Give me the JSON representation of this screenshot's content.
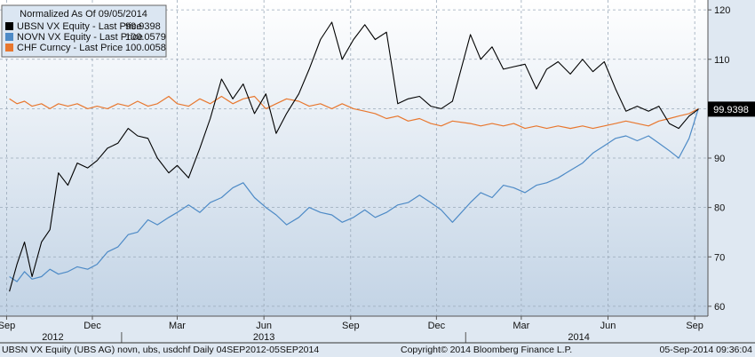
{
  "chart_data": {
    "type": "line",
    "legend": {
      "title": "Normalized As Of 09/05/2014",
      "placement": "top-left"
    },
    "series": [
      {
        "name": "UBSN VX Equity - Last Price",
        "last_value_label": "99.9398",
        "color": "#000000",
        "points": [
          [
            "2012-09-04",
            63.0
          ],
          [
            "2012-09-12",
            68.5
          ],
          [
            "2012-09-20",
            73.0
          ],
          [
            "2012-09-28",
            66.0
          ],
          [
            "2012-10-08",
            73.0
          ],
          [
            "2012-10-17",
            75.5
          ],
          [
            "2012-10-26",
            87.0
          ],
          [
            "2012-11-05",
            84.5
          ],
          [
            "2012-11-15",
            89.0
          ],
          [
            "2012-11-26",
            88.0
          ],
          [
            "2012-12-06",
            89.5
          ],
          [
            "2012-12-17",
            92.0
          ],
          [
            "2012-12-28",
            93.0
          ],
          [
            "2013-01-08",
            96.0
          ],
          [
            "2013-01-18",
            94.5
          ],
          [
            "2013-01-29",
            94.0
          ],
          [
            "2013-02-08",
            90.0
          ],
          [
            "2013-02-20",
            87.0
          ],
          [
            "2013-03-01",
            88.5
          ],
          [
            "2013-03-13",
            86.0
          ],
          [
            "2013-03-25",
            92.0
          ],
          [
            "2013-04-05",
            98.0
          ],
          [
            "2013-04-17",
            106.0
          ],
          [
            "2013-04-29",
            102.0
          ],
          [
            "2013-05-10",
            105.0
          ],
          [
            "2013-05-22",
            99.0
          ],
          [
            "2013-06-03",
            103.0
          ],
          [
            "2013-06-14",
            95.0
          ],
          [
            "2013-06-25",
            99.0
          ],
          [
            "2013-07-08",
            103.0
          ],
          [
            "2013-07-19",
            108.0
          ],
          [
            "2013-07-31",
            114.0
          ],
          [
            "2013-08-12",
            117.5
          ],
          [
            "2013-08-23",
            110.0
          ],
          [
            "2013-09-04",
            114.0
          ],
          [
            "2013-09-16",
            117.0
          ],
          [
            "2013-09-27",
            114.0
          ],
          [
            "2013-10-09",
            115.5
          ],
          [
            "2013-10-21",
            101.0
          ],
          [
            "2013-11-01",
            102.0
          ],
          [
            "2013-11-13",
            102.5
          ],
          [
            "2013-11-25",
            100.5
          ],
          [
            "2013-12-06",
            100.0
          ],
          [
            "2013-12-18",
            101.5
          ],
          [
            "2014-01-06",
            115.0
          ],
          [
            "2014-01-17",
            110.0
          ],
          [
            "2014-01-29",
            112.5
          ],
          [
            "2014-02-10",
            108.0
          ],
          [
            "2014-02-21",
            108.5
          ],
          [
            "2014-03-05",
            109.0
          ],
          [
            "2014-03-17",
            104.0
          ],
          [
            "2014-03-28",
            108.0
          ],
          [
            "2014-04-09",
            109.5
          ],
          [
            "2014-04-22",
            107.0
          ],
          [
            "2014-05-05",
            110.0
          ],
          [
            "2014-05-16",
            107.5
          ],
          [
            "2014-05-28",
            109.5
          ],
          [
            "2014-06-09",
            104.0
          ],
          [
            "2014-06-20",
            99.5
          ],
          [
            "2014-07-02",
            100.5
          ],
          [
            "2014-07-14",
            99.5
          ],
          [
            "2014-07-25",
            100.5
          ],
          [
            "2014-08-05",
            97.0
          ],
          [
            "2014-08-15",
            96.0
          ],
          [
            "2014-08-26",
            98.5
          ],
          [
            "2014-09-05",
            99.9
          ]
        ]
      },
      {
        "name": "NOVN VX Equity - Last Price",
        "last_value_label": "100.0579",
        "color": "#4d8ac6",
        "points": [
          [
            "2012-09-04",
            66.0
          ],
          [
            "2012-09-12",
            65.0
          ],
          [
            "2012-09-20",
            67.0
          ],
          [
            "2012-09-28",
            65.5
          ],
          [
            "2012-10-08",
            66.0
          ],
          [
            "2012-10-17",
            67.5
          ],
          [
            "2012-10-26",
            66.5
          ],
          [
            "2012-11-05",
            67.0
          ],
          [
            "2012-11-15",
            68.0
          ],
          [
            "2012-11-26",
            67.5
          ],
          [
            "2012-12-06",
            68.5
          ],
          [
            "2012-12-17",
            71.0
          ],
          [
            "2012-12-28",
            72.0
          ],
          [
            "2013-01-08",
            74.5
          ],
          [
            "2013-01-18",
            75.0
          ],
          [
            "2013-01-29",
            77.5
          ],
          [
            "2013-02-08",
            76.5
          ],
          [
            "2013-02-20",
            78.0
          ],
          [
            "2013-03-01",
            79.0
          ],
          [
            "2013-03-13",
            80.5
          ],
          [
            "2013-03-25",
            79.0
          ],
          [
            "2013-04-05",
            81.0
          ],
          [
            "2013-04-17",
            82.0
          ],
          [
            "2013-04-29",
            84.0
          ],
          [
            "2013-05-10",
            85.0
          ],
          [
            "2013-05-22",
            82.0
          ],
          [
            "2013-06-03",
            80.0
          ],
          [
            "2013-06-14",
            78.5
          ],
          [
            "2013-06-25",
            76.5
          ],
          [
            "2013-07-08",
            78.0
          ],
          [
            "2013-07-19",
            80.0
          ],
          [
            "2013-07-31",
            79.0
          ],
          [
            "2013-08-12",
            78.5
          ],
          [
            "2013-08-23",
            77.0
          ],
          [
            "2013-09-04",
            78.0
          ],
          [
            "2013-09-16",
            79.5
          ],
          [
            "2013-09-27",
            78.0
          ],
          [
            "2013-10-09",
            79.0
          ],
          [
            "2013-10-21",
            80.5
          ],
          [
            "2013-11-01",
            81.0
          ],
          [
            "2013-11-13",
            82.5
          ],
          [
            "2013-11-25",
            81.0
          ],
          [
            "2013-12-06",
            79.5
          ],
          [
            "2013-12-18",
            77.0
          ],
          [
            "2014-01-06",
            81.0
          ],
          [
            "2014-01-17",
            83.0
          ],
          [
            "2014-01-29",
            82.0
          ],
          [
            "2014-02-10",
            84.5
          ],
          [
            "2014-02-21",
            84.0
          ],
          [
            "2014-03-05",
            83.0
          ],
          [
            "2014-03-17",
            84.5
          ],
          [
            "2014-03-28",
            85.0
          ],
          [
            "2014-04-09",
            86.0
          ],
          [
            "2014-04-22",
            87.5
          ],
          [
            "2014-05-05",
            89.0
          ],
          [
            "2014-05-16",
            91.0
          ],
          [
            "2014-05-28",
            92.5
          ],
          [
            "2014-06-09",
            94.0
          ],
          [
            "2014-06-20",
            94.5
          ],
          [
            "2014-07-02",
            93.5
          ],
          [
            "2014-07-14",
            94.5
          ],
          [
            "2014-07-25",
            93.0
          ],
          [
            "2014-08-05",
            91.5
          ],
          [
            "2014-08-15",
            90.0
          ],
          [
            "2014-08-26",
            94.0
          ],
          [
            "2014-09-05",
            100.1
          ]
        ]
      },
      {
        "name": "CHF Curncy - Last Price",
        "last_value_label": "100.0058",
        "color": "#e8772e",
        "points": [
          [
            "2012-09-04",
            102.0
          ],
          [
            "2012-09-12",
            101.0
          ],
          [
            "2012-09-20",
            101.5
          ],
          [
            "2012-09-28",
            100.5
          ],
          [
            "2012-10-08",
            101.0
          ],
          [
            "2012-10-17",
            100.0
          ],
          [
            "2012-10-26",
            101.0
          ],
          [
            "2012-11-05",
            100.5
          ],
          [
            "2012-11-15",
            101.0
          ],
          [
            "2012-11-26",
            100.0
          ],
          [
            "2012-12-06",
            100.5
          ],
          [
            "2012-12-17",
            100.0
          ],
          [
            "2012-12-28",
            101.0
          ],
          [
            "2013-01-08",
            100.5
          ],
          [
            "2013-01-18",
            101.5
          ],
          [
            "2013-01-29",
            100.5
          ],
          [
            "2013-02-08",
            101.0
          ],
          [
            "2013-02-20",
            102.5
          ],
          [
            "2013-03-01",
            101.0
          ],
          [
            "2013-03-13",
            100.5
          ],
          [
            "2013-03-25",
            102.0
          ],
          [
            "2013-04-05",
            101.0
          ],
          [
            "2013-04-17",
            102.5
          ],
          [
            "2013-04-29",
            101.0
          ],
          [
            "2013-05-10",
            102.0
          ],
          [
            "2013-05-22",
            102.5
          ],
          [
            "2013-06-03",
            100.0
          ],
          [
            "2013-06-14",
            101.0
          ],
          [
            "2013-06-25",
            102.0
          ],
          [
            "2013-07-08",
            101.5
          ],
          [
            "2013-07-19",
            100.5
          ],
          [
            "2013-07-31",
            101.0
          ],
          [
            "2013-08-12",
            100.0
          ],
          [
            "2013-08-23",
            101.0
          ],
          [
            "2013-09-04",
            100.0
          ],
          [
            "2013-09-16",
            99.5
          ],
          [
            "2013-09-27",
            99.0
          ],
          [
            "2013-10-09",
            98.0
          ],
          [
            "2013-10-21",
            98.5
          ],
          [
            "2013-11-01",
            97.5
          ],
          [
            "2013-11-13",
            98.0
          ],
          [
            "2013-11-25",
            97.0
          ],
          [
            "2013-12-06",
            96.5
          ],
          [
            "2013-12-18",
            97.5
          ],
          [
            "2014-01-06",
            97.0
          ],
          [
            "2014-01-17",
            96.5
          ],
          [
            "2014-01-29",
            97.0
          ],
          [
            "2014-02-10",
            96.5
          ],
          [
            "2014-02-21",
            97.0
          ],
          [
            "2014-03-05",
            96.0
          ],
          [
            "2014-03-17",
            96.5
          ],
          [
            "2014-03-28",
            96.0
          ],
          [
            "2014-04-09",
            96.5
          ],
          [
            "2014-04-22",
            96.0
          ],
          [
            "2014-05-05",
            96.5
          ],
          [
            "2014-05-16",
            96.0
          ],
          [
            "2014-05-28",
            96.5
          ],
          [
            "2014-06-09",
            97.0
          ],
          [
            "2014-06-20",
            97.5
          ],
          [
            "2014-07-02",
            97.0
          ],
          [
            "2014-07-14",
            96.5
          ],
          [
            "2014-07-25",
            97.5
          ],
          [
            "2014-08-05",
            98.0
          ],
          [
            "2014-08-15",
            98.5
          ],
          [
            "2014-08-26",
            99.0
          ],
          [
            "2014-09-05",
            100.0
          ]
        ]
      }
    ],
    "y_axis": {
      "position": "right",
      "range": [
        58,
        122
      ],
      "ticks": [
        60,
        70,
        80,
        90,
        100,
        110,
        120
      ],
      "tick_labels": [
        "60",
        "70",
        "80",
        "90",
        "",
        "110",
        "120"
      ]
    },
    "x_axis": {
      "range": [
        "2012-08-25",
        "2014-09-15"
      ],
      "ticks": [
        {
          "date": "2012-09-01",
          "label": "Sep"
        },
        {
          "date": "2012-12-01",
          "label": "Dec"
        },
        {
          "date": "2013-03-01",
          "label": "Mar"
        },
        {
          "date": "2013-06-01",
          "label": "Jun"
        },
        {
          "date": "2013-09-01",
          "label": "Sep"
        },
        {
          "date": "2013-12-01",
          "label": "Dec"
        },
        {
          "date": "2014-03-01",
          "label": "Mar"
        },
        {
          "date": "2014-06-01",
          "label": "Jun"
        },
        {
          "date": "2014-09-01",
          "label": "Sep"
        }
      ],
      "year_labels": [
        {
          "date": "2012-10-20",
          "label": "2012"
        },
        {
          "date": "2013-06-01",
          "label": "2013"
        },
        {
          "date": "2014-05-01",
          "label": "2014"
        }
      ],
      "year_boundaries": [
        "2013-01-01",
        "2014-01-01"
      ]
    },
    "last_price_label": "99.9398",
    "grid": true
  },
  "footer": {
    "left": "UBSN VX Equity (UBS AG) novn, ubs, usdchf  Daily 04SEP2012-05SEP2014",
    "center": "Copyright© 2014 Bloomberg Finance L.P.",
    "right": "05-Sep-2014 09:36:04"
  },
  "colors": {
    "plot_bg_top": "#ffffff",
    "plot_bg_bottom": "#c2d3e5",
    "grid": "#9aa9b9",
    "price_tag_bg": "#000000",
    "price_tag_text": "#ffffff"
  }
}
